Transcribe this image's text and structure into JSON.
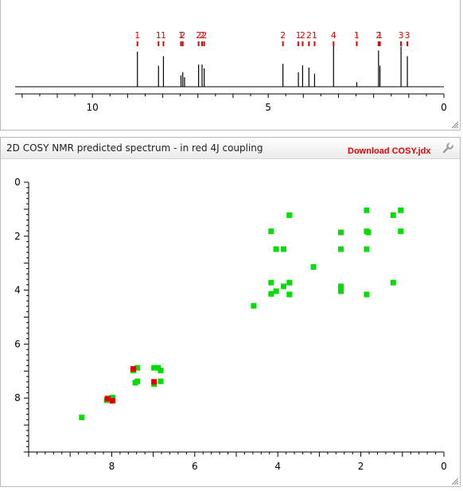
{
  "cosy_panel": {
    "title": "2D COSY NMR predicted spectrum - in red 4J coupling",
    "download_label": "Download COSY.jdx"
  },
  "colors": {
    "peak_label": "#e00000",
    "cross_peak": "#00dd00",
    "cross_peak_4j": "#e00000",
    "axis": "#000000"
  },
  "chart_data": [
    {
      "type": "line",
      "description_kind": "1D 1H NMR spectrum",
      "xlim": [
        12.2,
        0
      ],
      "x_ticks": [
        10,
        5,
        0
      ],
      "x_minor_step": 0.5,
      "peaks": [
        {
          "shift": 8.72,
          "height": 0.92,
          "label": "1"
        },
        {
          "shift": 8.12,
          "height": 0.55,
          "label": "1"
        },
        {
          "shift": 7.98,
          "height": 0.8,
          "label": "1"
        },
        {
          "shift": 7.48,
          "height": 0.3,
          "label": "1"
        },
        {
          "shift": 7.43,
          "height": 0.38,
          "label": "2"
        },
        {
          "shift": 7.38,
          "height": 0.25,
          "label": ""
        },
        {
          "shift": 6.98,
          "height": 0.58,
          "label": "2"
        },
        {
          "shift": 6.88,
          "height": 0.58,
          "label": "2"
        },
        {
          "shift": 6.82,
          "height": 0.48,
          "label": "2"
        },
        {
          "shift": 4.58,
          "height": 0.6,
          "label": "2"
        },
        {
          "shift": 4.14,
          "height": 0.38,
          "label": "1"
        },
        {
          "shift": 4.02,
          "height": 0.56,
          "label": "2"
        },
        {
          "shift": 3.84,
          "height": 0.5,
          "label": "2"
        },
        {
          "shift": 3.68,
          "height": 0.34,
          "label": "1"
        },
        {
          "shift": 3.14,
          "height": 1.1,
          "label": "4"
        },
        {
          "shift": 2.48,
          "height": 0.12,
          "label": "1"
        },
        {
          "shift": 1.86,
          "height": 0.95,
          "label": "2"
        },
        {
          "shift": 1.82,
          "height": 0.55,
          "label": "1"
        },
        {
          "shift": 1.22,
          "height": 1.05,
          "label": "3"
        },
        {
          "shift": 1.04,
          "height": 0.8,
          "label": "3"
        }
      ]
    },
    {
      "type": "scatter",
      "description_kind": "2D COSY spectrum",
      "xlim": [
        10,
        0
      ],
      "ylim": [
        0,
        10
      ],
      "x_ticks": [
        8,
        6,
        4,
        2,
        0
      ],
      "y_ticks": [
        0,
        2,
        4,
        6,
        8
      ],
      "minor_step": 0.2,
      "series": [
        {
          "color_key": "cross_peak",
          "points": [
            [
              8.72,
              8.72
            ],
            [
              8.12,
              8.08
            ],
            [
              7.98,
              7.98
            ],
            [
              7.48,
              6.98
            ],
            [
              7.43,
              7.43
            ],
            [
              7.38,
              6.88
            ],
            [
              7.38,
              7.38
            ],
            [
              6.98,
              6.88
            ],
            [
              6.98,
              7.48
            ],
            [
              6.88,
              6.88
            ],
            [
              6.82,
              7.38
            ],
            [
              6.82,
              6.98
            ],
            [
              4.58,
              4.58
            ],
            [
              4.16,
              1.82
            ],
            [
              4.16,
              3.72
            ],
            [
              4.16,
              4.14
            ],
            [
              4.04,
              2.48
            ],
            [
              4.04,
              4.04
            ],
            [
              3.86,
              2.48
            ],
            [
              3.86,
              3.86
            ],
            [
              3.72,
              1.22
            ],
            [
              3.72,
              3.72
            ],
            [
              3.72,
              4.16
            ],
            [
              3.14,
              3.14
            ],
            [
              2.48,
              1.86
            ],
            [
              2.48,
              2.48
            ],
            [
              2.48,
              3.86
            ],
            [
              2.48,
              4.04
            ],
            [
              1.86,
              1.04
            ],
            [
              1.86,
              1.82
            ],
            [
              1.86,
              2.48
            ],
            [
              1.86,
              4.16
            ],
            [
              1.82,
              1.86
            ],
            [
              1.22,
              1.22
            ],
            [
              1.22,
              3.72
            ],
            [
              1.04,
              1.04
            ],
            [
              1.04,
              1.82
            ]
          ]
        },
        {
          "color_key": "cross_peak_4j",
          "points": [
            [
              8.1,
              8.02
            ],
            [
              7.98,
              8.1
            ],
            [
              6.98,
              7.4
            ],
            [
              7.48,
              6.92
            ]
          ]
        }
      ]
    }
  ]
}
